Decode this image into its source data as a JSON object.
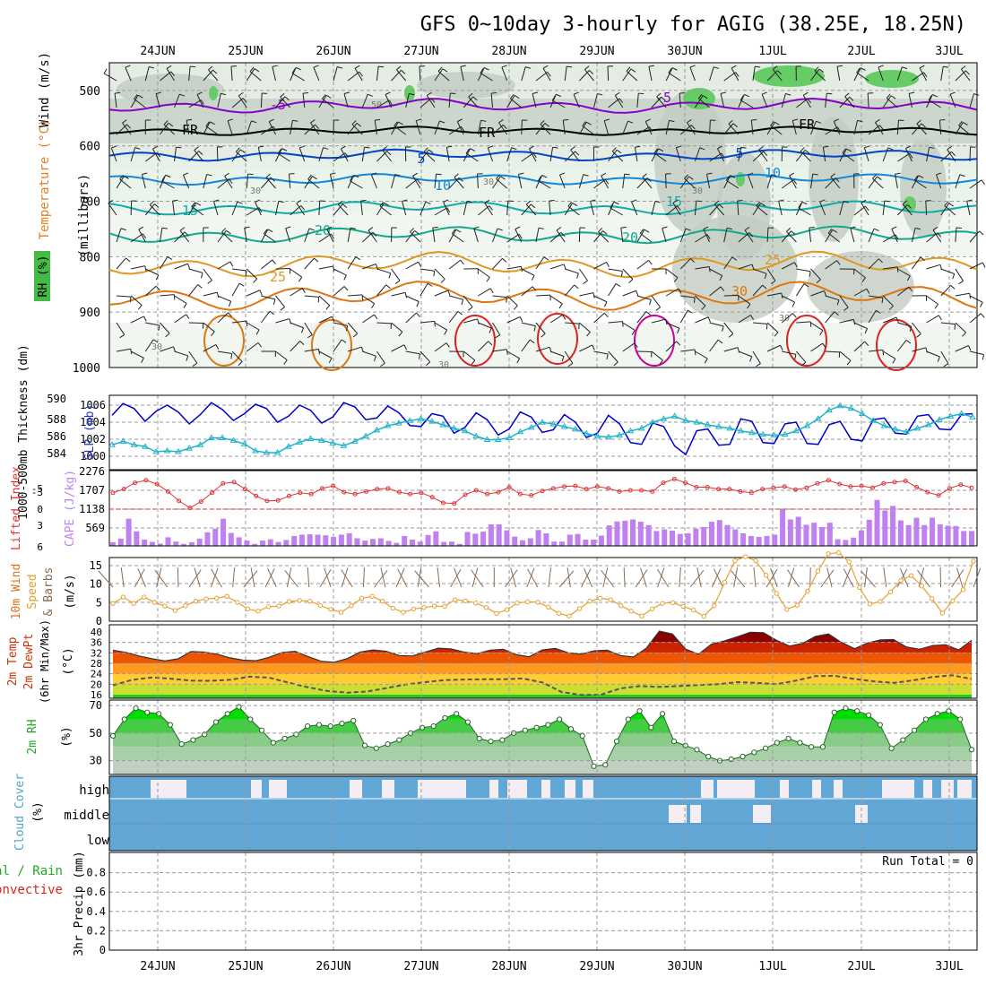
{
  "title": "GFS 0~10day 3-hourly for AGIG (38.25E, 18.25N)",
  "dates": [
    "24JUN",
    "25JUN",
    "26JUN",
    "27JUN",
    "28JUN",
    "29JUN",
    "30JUN",
    "1JUL",
    "2JUL",
    "3JUL"
  ],
  "chart_data": [
    {
      "type": "heatmap",
      "panel": "upper-air",
      "ylabel": "(millibars)",
      "side_labels": [
        "Wind (m/s)",
        "Temperature (°C)",
        "RH (%)"
      ],
      "yticks": [
        500,
        600,
        700,
        800,
        900,
        1000
      ],
      "ylim": [
        1000,
        450
      ],
      "isotherm_labels": [
        "-5",
        "FR",
        "5",
        "10",
        "15",
        "20",
        "25",
        "30"
      ],
      "rh_labels": [
        "50",
        "30"
      ],
      "grid": true
    },
    {
      "type": "line",
      "panel": "thickness-slp",
      "left_label": "1000-500mb Thickness (dm)",
      "right_label": "SLP (mb)",
      "left_ticks": [
        584,
        586,
        588,
        590
      ],
      "right_ticks": [
        1000,
        1002,
        1004,
        1006
      ],
      "series": [
        {
          "name": "SLP (mb)",
          "color": "#0000cc",
          "values": [
            1004.8,
            1006.2,
            1005.6,
            1004.1,
            1005.3,
            1006.0,
            1005.2,
            1003.8,
            1004.9,
            1006.3,
            1005.5,
            1004.2,
            1005.0,
            1006.1,
            1005.6,
            1004.0,
            1004.7,
            1006.0,
            1005.4,
            1003.9,
            1004.6,
            1006.3,
            1005.8,
            1004.3,
            1004.5,
            1005.9,
            1005.1,
            1003.6,
            1003.5,
            1005.0,
            1004.7,
            1002.7,
            1003.4,
            1005.1,
            1004.3,
            1002.5,
            1003.2,
            1005.2,
            1004.6,
            1002.8,
            1003.1,
            1004.9,
            1004.0,
            1002.2,
            1002.7,
            1004.8,
            1003.8,
            1001.6,
            1001.4,
            1003.9,
            1003.5,
            1001.2,
            1000.2,
            1003.0,
            1003.2,
            1001.3,
            1001.4,
            1004.4,
            1004.1,
            1001.6,
            1001.5,
            1003.8,
            1004.0,
            1001.5,
            1001.4,
            1003.7,
            1004.1,
            1002.0,
            1001.8,
            1004.3,
            1004.5,
            1002.7,
            1002.6,
            1004.7,
            1004.9,
            1003.2,
            1003.1,
            1004.9,
            1005.0
          ]
        },
        {
          "name": "Thickness (dm)",
          "color": "#20b2c8",
          "values": [
            584.8,
            585.2,
            584.8,
            584.6,
            584.0,
            584.1,
            584.0,
            584.4,
            584.8,
            585.6,
            585.6,
            585.3,
            584.9,
            584.1,
            583.9,
            583.9,
            584.6,
            585.1,
            585.5,
            585.3,
            585.0,
            584.7,
            585.2,
            585.8,
            586.5,
            587.0,
            587.3,
            587.6,
            587.8,
            587.5,
            587.1,
            586.7,
            586.4,
            585.8,
            585.4,
            585.4,
            585.6,
            586.3,
            586.8,
            587.4,
            587.2,
            586.9,
            586.6,
            586.1,
            585.8,
            585.7,
            585.9,
            586.4,
            586.7,
            587.4,
            587.8,
            588.1,
            587.6,
            587.4,
            587.1,
            586.9,
            586.7,
            586.4,
            586.2,
            586.0,
            585.9,
            586.0,
            586.4,
            587.0,
            587.8,
            588.8,
            589.3,
            589.0,
            588.4,
            587.6,
            587.0,
            586.6,
            586.3,
            586.7,
            587.1,
            587.7,
            588.1,
            588.4,
            588.0
          ]
        }
      ]
    },
    {
      "type": "bar",
      "panel": "lifted-index-cape",
      "left_label": "Lifted Index",
      "right_label": "CAPE (J/kg)",
      "left_ticks": [
        "-5",
        "-3",
        "0",
        "3",
        "6"
      ],
      "right_ticks": [
        "2276",
        "1707",
        "1138",
        "569"
      ],
      "series": [
        {
          "name": "CAPE (J/kg)",
          "color": "#c080f0",
          "values": [
            110,
            220,
            820,
            440,
            190,
            120,
            70,
            260,
            130,
            60,
            110,
            220,
            410,
            520,
            820,
            390,
            260,
            160,
            60,
            160,
            200,
            120,
            180,
            300,
            340,
            350,
            340,
            320,
            270,
            340,
            380,
            230,
            160,
            210,
            230,
            150,
            90,
            300,
            190,
            130,
            330,
            440,
            120,
            130,
            60,
            420,
            370,
            430,
            650,
            650,
            470,
            280,
            170,
            230,
            480,
            380,
            130,
            130,
            340,
            360,
            190,
            190,
            310,
            620,
            740,
            760,
            800,
            730,
            630,
            450,
            500,
            460,
            360,
            380,
            520,
            570,
            730,
            780,
            630,
            500,
            380,
            300,
            270,
            300,
            340,
            1100,
            800,
            880,
            640,
            700,
            570,
            700,
            200,
            180,
            250,
            470,
            790,
            1390,
            1070,
            1210,
            770,
            630,
            850,
            630,
            850,
            650,
            610,
            600,
            450,
            450
          ]
        },
        {
          "name": "Lifted Index",
          "color": "#dd3333",
          "values": [
            -2.6,
            -3.2,
            -4.2,
            -4.6,
            -4.0,
            -2.8,
            -1.3,
            -0.2,
            -1.2,
            -2.6,
            -4.1,
            -4.3,
            -3.2,
            -2.1,
            -1.3,
            -1.4,
            -2.1,
            -2.6,
            -2.4,
            -3.3,
            -3.7,
            -2.7,
            -2.4,
            -2.8,
            -3.2,
            -3.3,
            -2.7,
            -2.4,
            -2.6,
            -1.9,
            -1.0,
            -0.9,
            -2.3,
            -3.0,
            -2.4,
            -2.7,
            -3.5,
            -2.4,
            -2.2,
            -2.9,
            -3.3,
            -3.6,
            -3.7,
            -3.2,
            -3.6,
            -3.3,
            -2.8,
            -3.0,
            -3.0,
            -2.8,
            -4.2,
            -4.8,
            -4.2,
            -3.5,
            -3.5,
            -3.2,
            -3.2,
            -2.8,
            -2.6,
            -3.2,
            -3.4,
            -3.6,
            -3.1,
            -3.4,
            -4.1,
            -4.6,
            -4.0,
            -3.6,
            -3.7,
            -3.4,
            -4.1,
            -4.3,
            -4.5,
            -3.5,
            -2.7,
            -2.2,
            -3.3,
            -3.9,
            -3.4
          ]
        }
      ]
    },
    {
      "type": "line",
      "panel": "10m-wind",
      "ylabel": "10m Wind Speed & Barbs",
      "unit": "(m/s)",
      "yticks": [
        0,
        5,
        10,
        15
      ],
      "series": [
        {
          "name": "Speed",
          "color": "#e8a030",
          "values": [
            4.8,
            6.5,
            4.8,
            6.5,
            5.1,
            4.1,
            2.9,
            4.2,
            5.4,
            6.0,
            6.2,
            6.7,
            5.1,
            3.3,
            2.7,
            3.9,
            4.1,
            5.3,
            5.6,
            5.4,
            4.2,
            3.2,
            2.4,
            4.2,
            6.2,
            6.7,
            5.4,
            3.5,
            2.4,
            3.3,
            3.7,
            4.1,
            4.0,
            5.8,
            5.5,
            4.9,
            3.7,
            2.1,
            3.1,
            4.9,
            5.2,
            5.1,
            3.8,
            2.1,
            1.4,
            3.4,
            5.4,
            6.2,
            5.8,
            4.2,
            2.7,
            1.4,
            3.3,
            4.8,
            5.0,
            4.0,
            3.0,
            1.3,
            4.2,
            10.5,
            16.3,
            17.4,
            16.3,
            12.4,
            7.5,
            3.2,
            4.3,
            8.1,
            13.5,
            18.2,
            18.5,
            16.0,
            9.1,
            4.6,
            5.3,
            7.9,
            11.0,
            12.3,
            9.5,
            6.1,
            2.2,
            5.5,
            8.5,
            16.2
          ]
        }
      ]
    },
    {
      "type": "area",
      "panel": "2m-temp",
      "ylabel": "2m Temp 2m DewPt (6hr Min/Max)",
      "unit": "(°C)",
      "yticks": [
        16,
        20,
        24,
        28,
        32,
        36,
        40
      ],
      "series": [
        {
          "name": "2m Temp",
          "color": "#993300",
          "values": [
            33.0,
            32.2,
            30.8,
            29.8,
            28.9,
            29.7,
            32.5,
            32.3,
            31.5,
            30.1,
            29.2,
            29.0,
            30.3,
            32.1,
            32.6,
            30.6,
            28.8,
            28.4,
            29.8,
            32.3,
            33.1,
            32.6,
            31.0,
            30.8,
            32.3,
            33.8,
            33.5,
            32.3,
            31.7,
            33.0,
            33.4,
            31.3,
            30.5,
            33.1,
            33.7,
            32.0,
            31.5,
            32.8,
            33.0,
            31.0,
            30.4,
            33.8,
            40.3,
            39.2,
            33.5,
            31.5,
            35.3,
            36.6,
            38.2,
            39.9,
            39.7,
            36.8,
            34.6,
            35.6,
            38.3,
            39.2,
            36.0,
            33.6,
            35.8,
            37.0,
            37.1,
            34.2,
            33.4,
            34.8,
            35.1,
            33.1,
            36.8
          ]
        },
        {
          "name": "2m DewPt",
          "color": "#555555",
          "values": [
            19.6,
            21.7,
            22.6,
            22.1,
            21.4,
            21.3,
            21.7,
            22.9,
            22.5,
            20.6,
            18.8,
            17.4,
            16.8,
            17.2,
            18.5,
            19.9,
            20.8,
            21.6,
            21.8,
            21.9,
            21.9,
            22.2,
            20.7,
            17.0,
            15.9,
            16.0,
            18.4,
            19.3,
            19.0,
            19.3,
            19.7,
            20.0,
            20.8,
            20.5,
            20.0,
            21.4,
            23.1,
            23.2,
            22.0,
            21.1,
            20.5,
            21.5,
            22.8,
            23.4,
            22.0
          ]
        }
      ]
    },
    {
      "type": "area",
      "panel": "2m-rh",
      "ylabel": "2m RH",
      "unit": "(%)",
      "yticks": [
        30,
        50,
        70
      ],
      "series": [
        {
          "name": "2m RH",
          "color": "#00cc00",
          "values": [
            48,
            60,
            68,
            65,
            64,
            56,
            42,
            45,
            49,
            58,
            64,
            69,
            60,
            52,
            43,
            46,
            49,
            55,
            56,
            55,
            57,
            59,
            41,
            39,
            42,
            45,
            50,
            54,
            55,
            61,
            64,
            58,
            46,
            44,
            45,
            50,
            52,
            54,
            56,
            60,
            53,
            48,
            26,
            27,
            44,
            60,
            66,
            54,
            64,
            44,
            41,
            38,
            33,
            30,
            31,
            33,
            36,
            39,
            43,
            46,
            43,
            40,
            40,
            65,
            68,
            66,
            63,
            56,
            39,
            45,
            52,
            60,
            64,
            66,
            60,
            38
          ]
        }
      ]
    },
    {
      "type": "heatmap",
      "panel": "cloud-cover",
      "ylabel": "Cloud Cover",
      "unit": "(%)",
      "row_labels": [
        "high",
        "middle",
        "low"
      ]
    },
    {
      "type": "bar",
      "panel": "precip",
      "ylabel": "3hr Precip (mm)",
      "legend": [
        "Total / Rain",
        "Convective"
      ],
      "yticks": [
        0,
        0.2,
        0.4,
        0.6,
        0.8
      ],
      "annotation": "Run Total = 0",
      "values": []
    }
  ],
  "colors": {
    "slp": "#0000cc",
    "thickness": "#20b2c8",
    "cape": "#c080f0",
    "lifted_index": "#dd3333",
    "wind_speed": "#e8a030",
    "rh": "#00cc00",
    "cloud": "#62a6d6"
  }
}
